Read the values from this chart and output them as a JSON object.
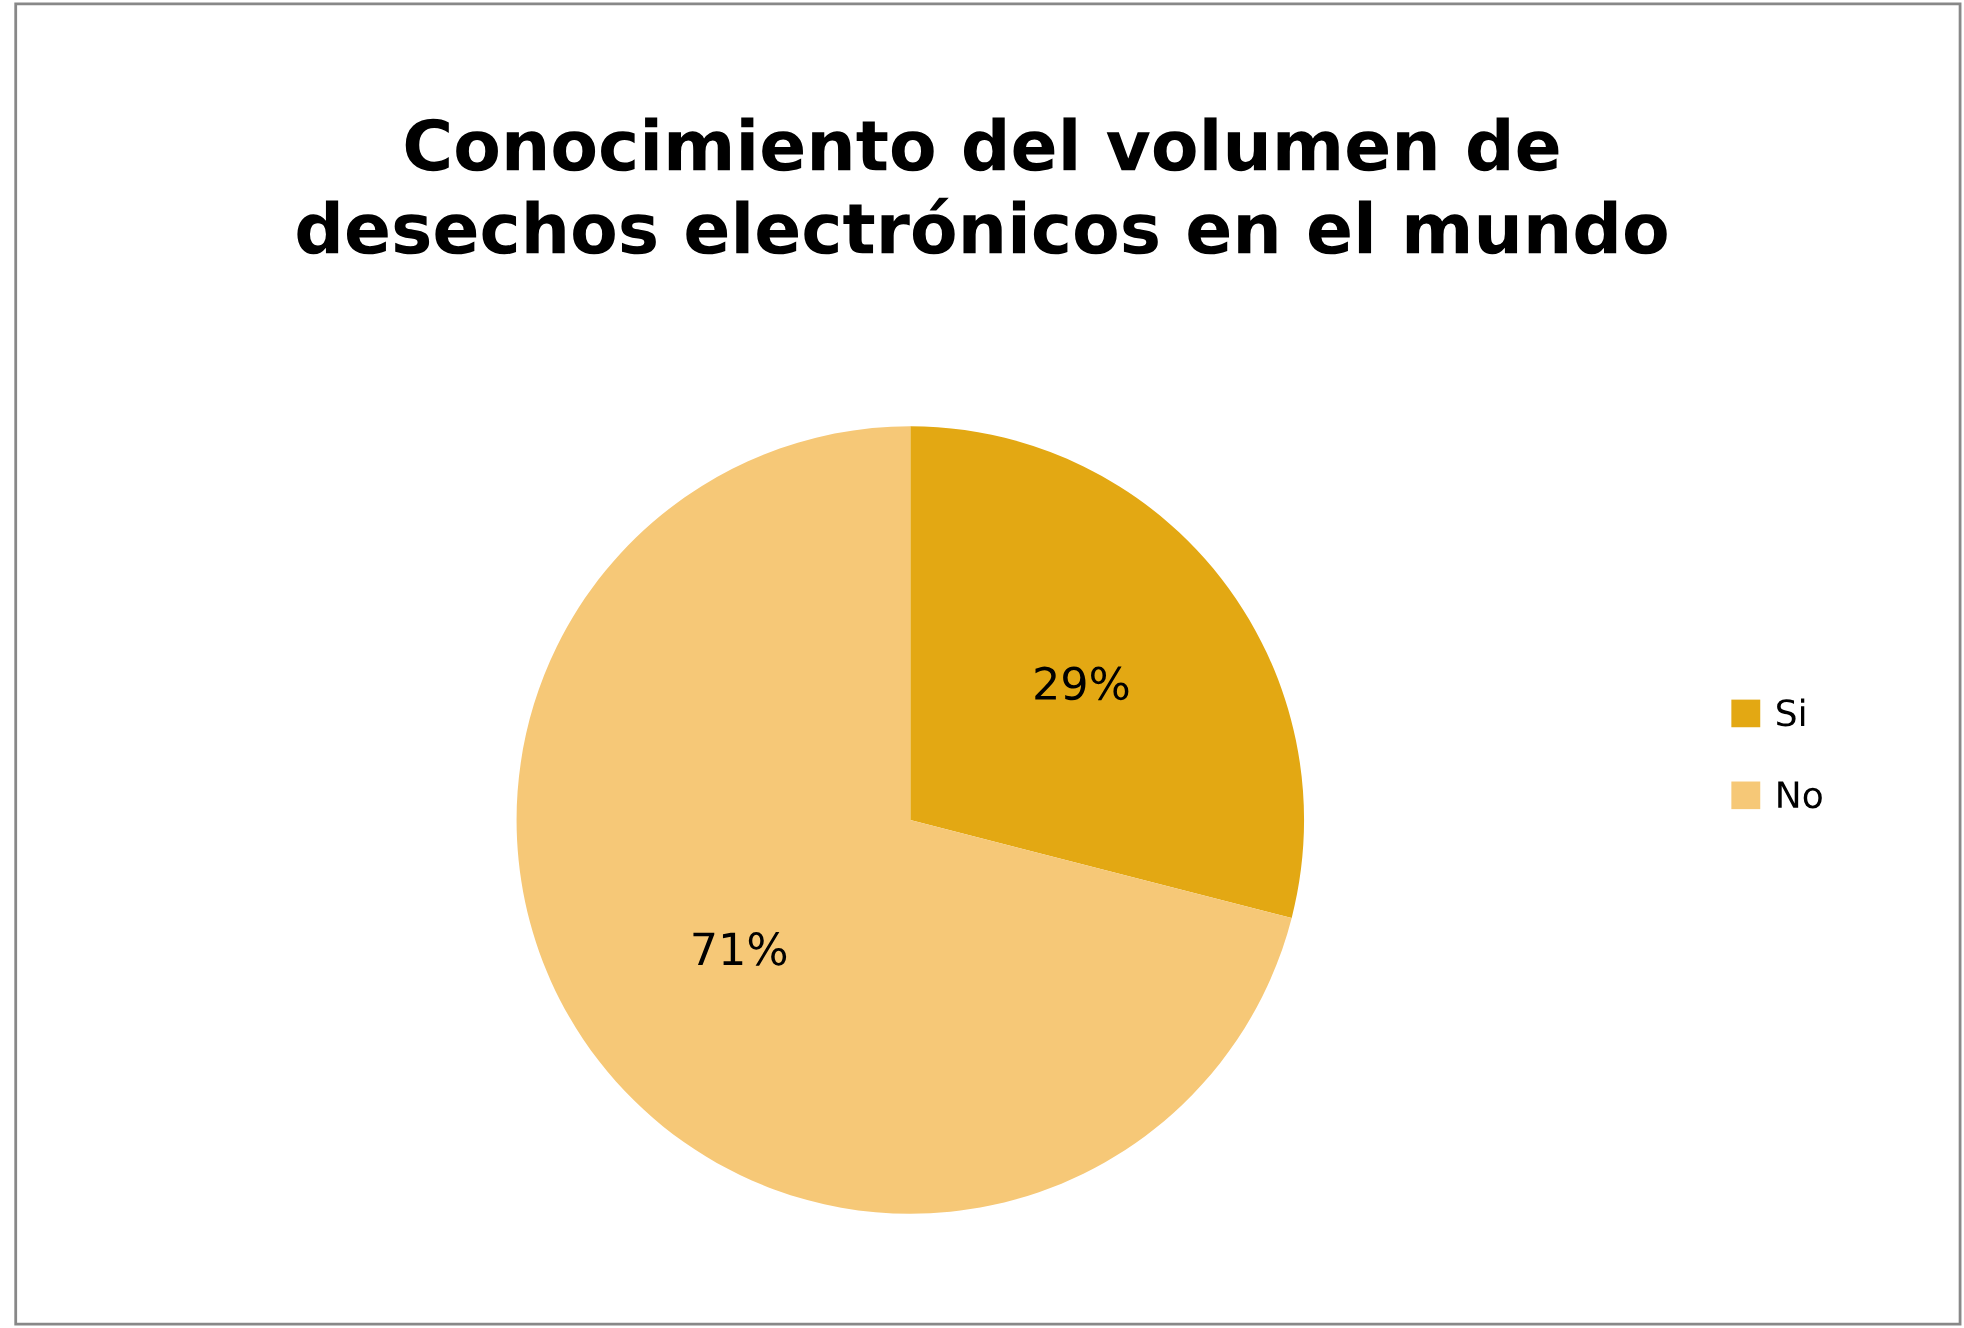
{
  "chart_data": {
    "type": "pie",
    "title": "Conocimiento del volumen de\ndesechos electrónicos en el mundo",
    "categories": [
      "Si",
      "No"
    ],
    "values": [
      29,
      71
    ],
    "colors": [
      "#e3a813",
      "#f6c877"
    ],
    "value_labels": [
      "29%",
      "71%"
    ],
    "legend": "right"
  }
}
